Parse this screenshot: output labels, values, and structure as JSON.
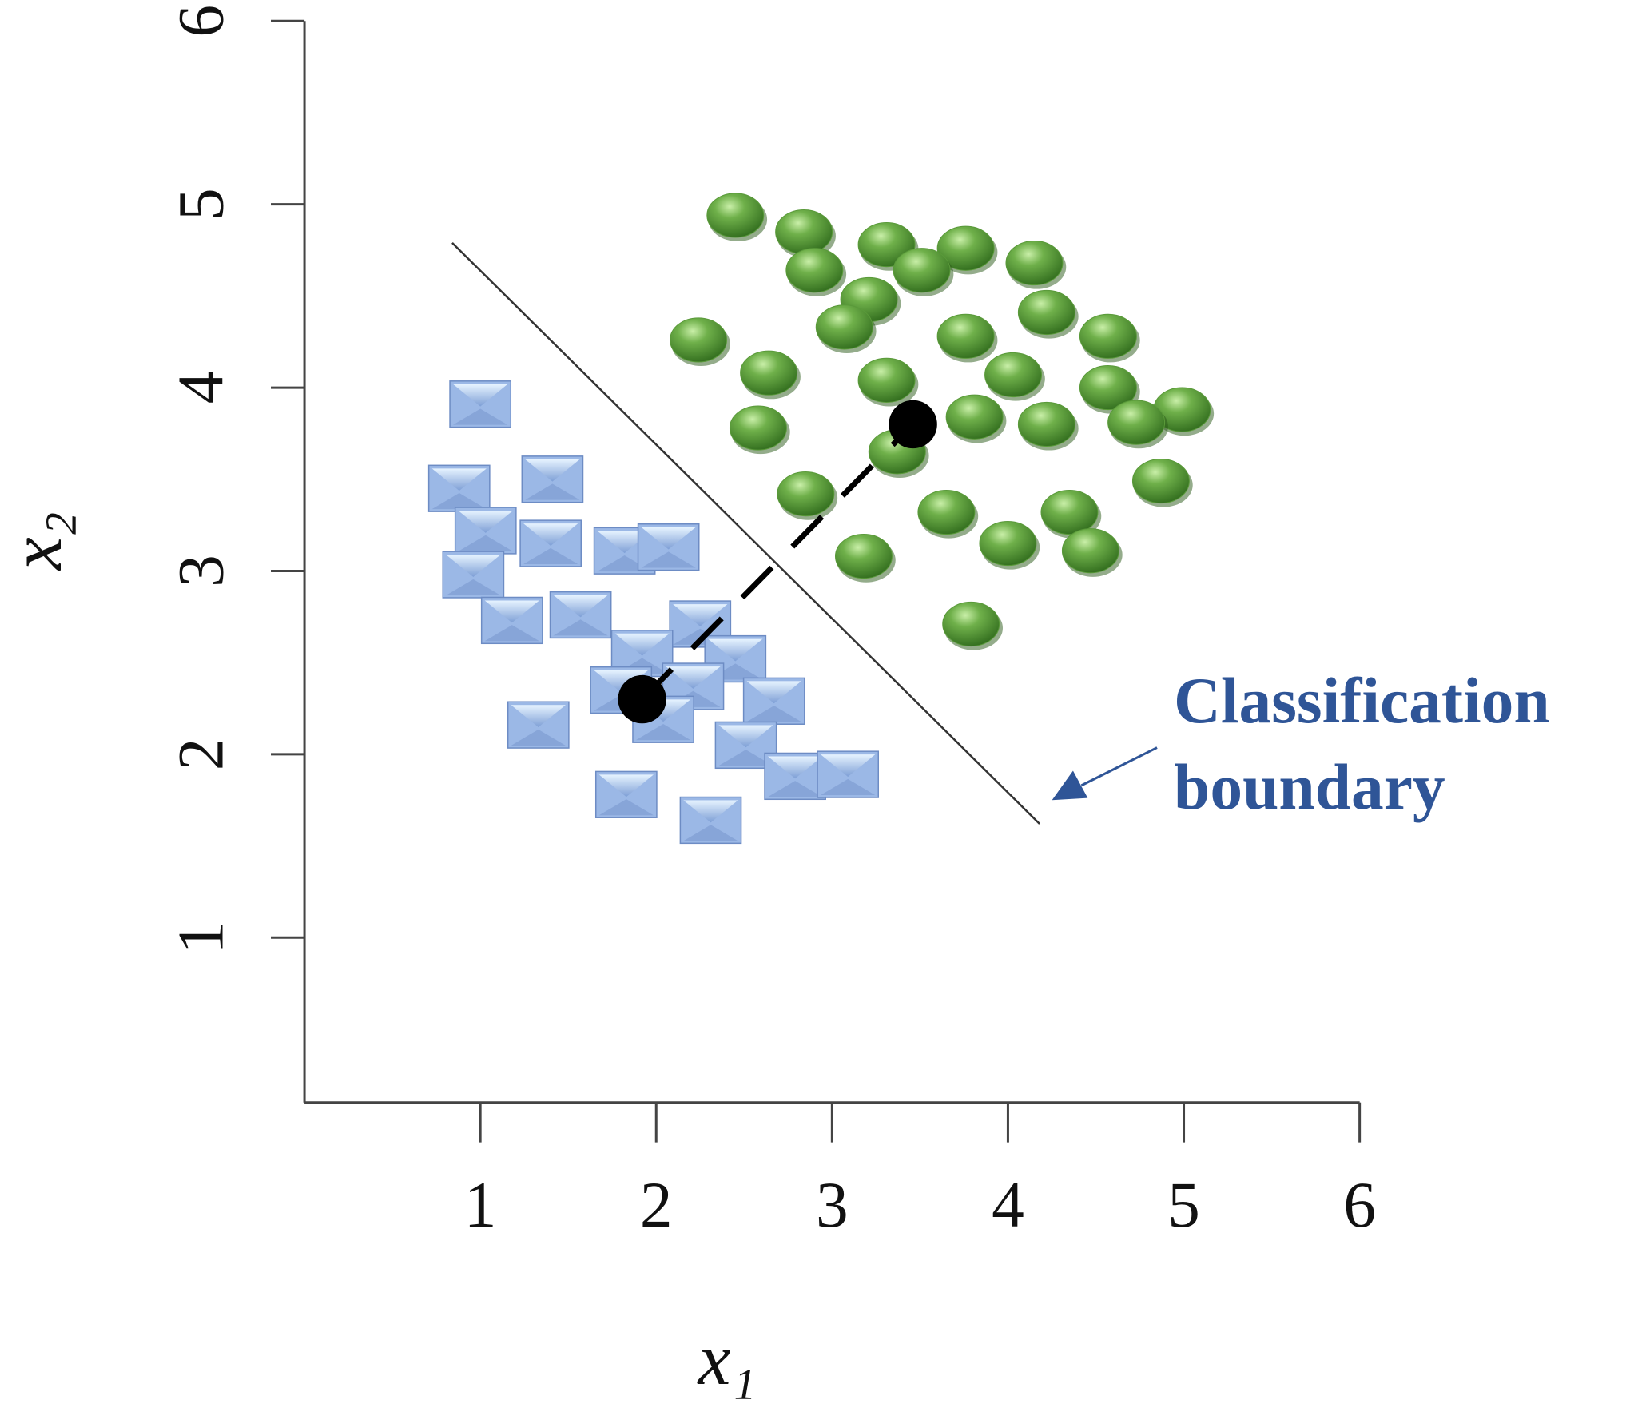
{
  "chart_data": {
    "type": "scatter",
    "xlabel": "x₁",
    "ylabel": "x₂",
    "xlim": [
      0,
      6
    ],
    "ylim": [
      0.1,
      6
    ],
    "xticks": [
      1,
      2,
      3,
      4,
      5,
      6
    ],
    "yticks": [
      1,
      2,
      3,
      4,
      5,
      6
    ],
    "series": [
      {
        "color": "#5a9a3a",
        "marker": "sphere",
        "x": [
          2.45,
          2.84,
          3.31,
          3.76,
          4.15,
          2.9,
          3.51,
          3.21,
          4.22,
          3.07,
          3.76,
          4.57,
          2.24,
          2.64,
          3.31,
          4.03,
          4.57,
          4.99,
          2.58,
          3.81,
          4.22,
          4.73,
          3.37,
          2.85,
          4.87,
          3.65,
          4.35,
          4.0,
          3.18,
          4.47,
          3.79
        ],
        "values": [
          4.94,
          4.85,
          4.78,
          4.76,
          4.68,
          4.64,
          4.64,
          4.48,
          4.41,
          4.33,
          4.28,
          4.28,
          4.26,
          4.08,
          4.04,
          4.07,
          4.0,
          3.88,
          3.78,
          3.84,
          3.8,
          3.81,
          3.65,
          3.42,
          3.49,
          3.32,
          3.32,
          3.15,
          3.08,
          3.11,
          2.71
        ]
      },
      {
        "color": "#9bb8e6",
        "marker": "square",
        "x": [
          1.0,
          0.88,
          1.41,
          1.03,
          1.4,
          1.82,
          2.07,
          0.96,
          1.18,
          1.57,
          2.25,
          1.92,
          2.45,
          1.8,
          2.21,
          2.67,
          2.04,
          1.33,
          2.51,
          2.79,
          3.09,
          1.83,
          2.31
        ],
        "values": [
          3.91,
          3.45,
          3.5,
          3.22,
          3.15,
          3.11,
          3.13,
          2.98,
          2.73,
          2.76,
          2.71,
          2.55,
          2.52,
          2.35,
          2.37,
          2.29,
          2.19,
          2.16,
          2.05,
          1.88,
          1.89,
          1.78,
          1.64
        ]
      }
    ],
    "centroids": {
      "color": "#000000",
      "x": [
        1.92,
        3.46
      ],
      "values": [
        2.3,
        3.8
      ]
    },
    "boundary": {
      "color": "#333333",
      "x": [
        0.84,
        4.18
      ],
      "values": [
        4.79,
        1.62
      ]
    },
    "annotation": {
      "lines": [
        "Classification",
        "boundary"
      ],
      "color": "#2f5597"
    }
  }
}
